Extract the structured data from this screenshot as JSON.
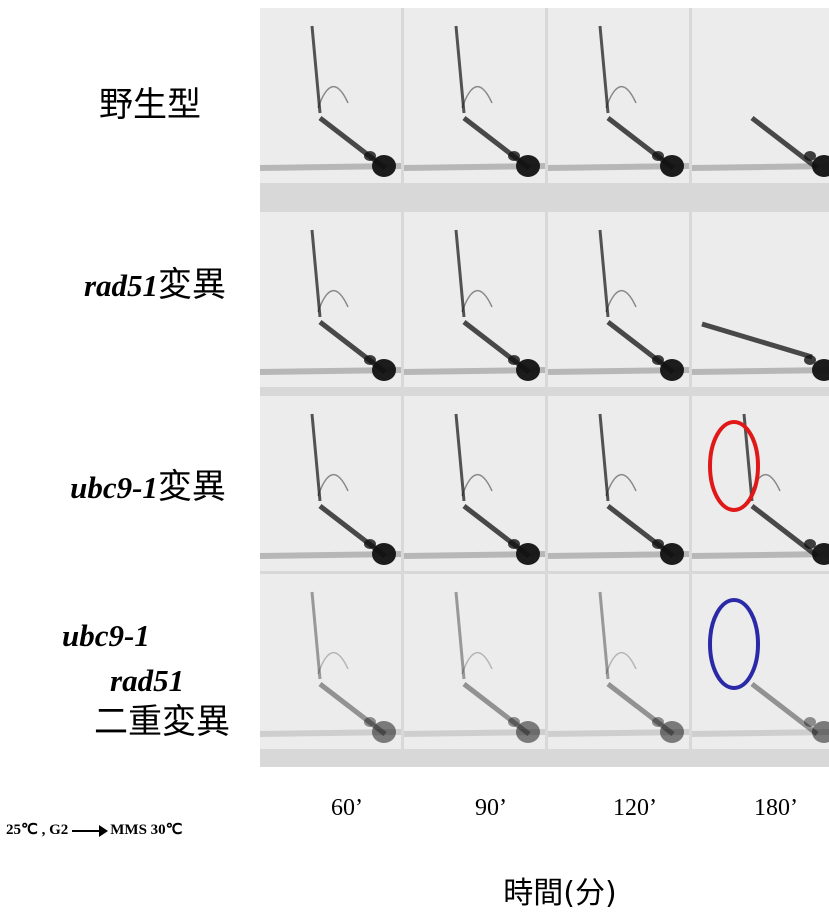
{
  "rows": [
    {
      "label": "野生型"
    },
    {
      "gene": "rad51",
      "suffix": "変異"
    },
    {
      "gene": "ubc9-1",
      "suffix": "変異"
    },
    {
      "gene1": "ubc9-1",
      "gene2": "rad51",
      "suffix": "二重変異"
    }
  ],
  "time_points": [
    "60’",
    "90’",
    "120’",
    "180’"
  ],
  "condition": {
    "start": "25℃ , G2",
    "end": "MMS  30℃"
  },
  "x_axis_label": "時間(分)",
  "colors": {
    "highlight_red": "#e01818",
    "highlight_blue": "#2a2aa8",
    "band": "#111111",
    "panel_bg": "#ececec",
    "grid_bg": "#d8d8d8"
  }
}
